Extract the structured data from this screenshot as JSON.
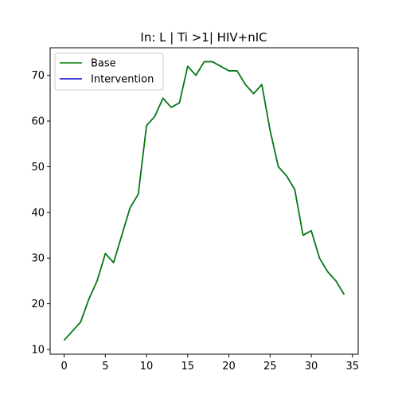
{
  "chart_data": {
    "type": "line",
    "title": "In: L | Ti >1| HIV+nIC",
    "xlabel": "",
    "ylabel": "",
    "xlim": [
      -1.7,
      35.7
    ],
    "ylim": [
      8.95,
      76.05
    ],
    "xticks": [
      0,
      5,
      10,
      15,
      20,
      25,
      30,
      35
    ],
    "yticks": [
      10,
      20,
      30,
      40,
      50,
      60,
      70
    ],
    "grid": false,
    "legend_position": "top-left",
    "x": [
      0,
      1,
      2,
      3,
      4,
      5,
      6,
      7,
      8,
      9,
      10,
      11,
      12,
      13,
      14,
      15,
      16,
      17,
      18,
      19,
      20,
      21,
      22,
      23,
      24,
      25,
      26,
      27,
      28,
      29,
      30,
      31,
      32,
      33,
      34
    ],
    "series": [
      {
        "name": "Base",
        "color": "#008000",
        "values": [
          12,
          14,
          16,
          21,
          25,
          31,
          29,
          35,
          41,
          44,
          59,
          61,
          65,
          63,
          64,
          72,
          70,
          73,
          73,
          72,
          71,
          71,
          68,
          66,
          68,
          58,
          50,
          48,
          45,
          35,
          36,
          30,
          27,
          25,
          22
        ]
      },
      {
        "name": "Intervention",
        "color": "#0000cc",
        "values": [
          12,
          14,
          16,
          21,
          25,
          31,
          29,
          35,
          41,
          44,
          59,
          61,
          65,
          63,
          64,
          72,
          70,
          73,
          73,
          72,
          71,
          71,
          68,
          66,
          68,
          58,
          50,
          48,
          45,
          35,
          36,
          30,
          27,
          25,
          22
        ]
      }
    ]
  }
}
